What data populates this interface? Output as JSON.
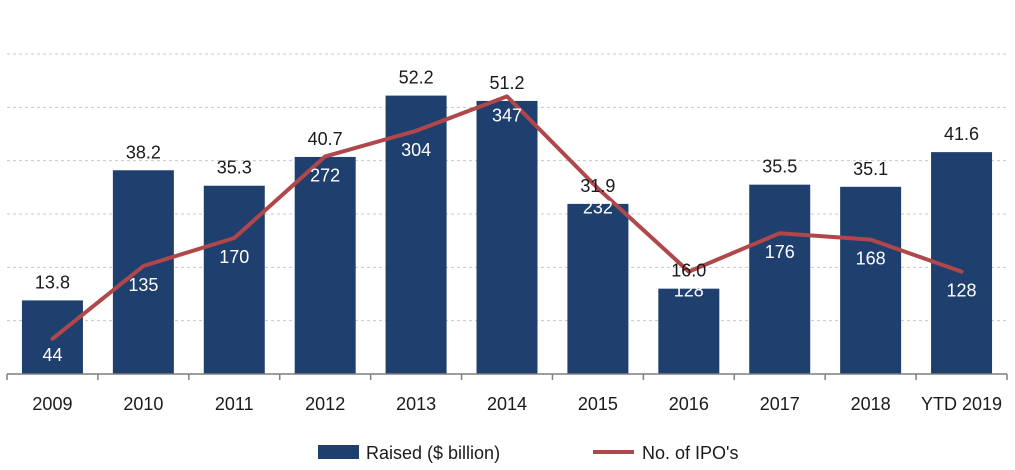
{
  "chart_data": {
    "type": "bar",
    "categories": [
      "2009",
      "2010",
      "2011",
      "2012",
      "2013",
      "2014",
      "2015",
      "2016",
      "2017",
      "2018",
      "YTD 2019"
    ],
    "series": [
      {
        "name": "Raised ($ billion)",
        "type": "bar",
        "axis": "left",
        "color": "#1F3F6E",
        "values": [
          13.8,
          38.2,
          35.3,
          40.7,
          52.2,
          51.2,
          31.9,
          16.0,
          35.5,
          35.1,
          41.6
        ],
        "labels": [
          "13.8",
          "38.2",
          "35.3",
          "40.7",
          "52.2",
          "51.2",
          "31.9",
          "16.0",
          "35.5",
          "35.1",
          "41.6"
        ]
      },
      {
        "name": "No. of IPO's",
        "type": "line",
        "axis": "right",
        "color": "#B0474A",
        "values": [
          44,
          135,
          170,
          272,
          304,
          347,
          232,
          128,
          176,
          168,
          128
        ],
        "labels": [
          "44",
          "135",
          "170",
          "272",
          "304",
          "347",
          "232",
          "128",
          "176",
          "168",
          "128"
        ]
      }
    ],
    "ylim_left": [
      0,
      60
    ],
    "ylim_right": [
      0,
      400
    ],
    "grid": true,
    "legend": "bottom"
  }
}
